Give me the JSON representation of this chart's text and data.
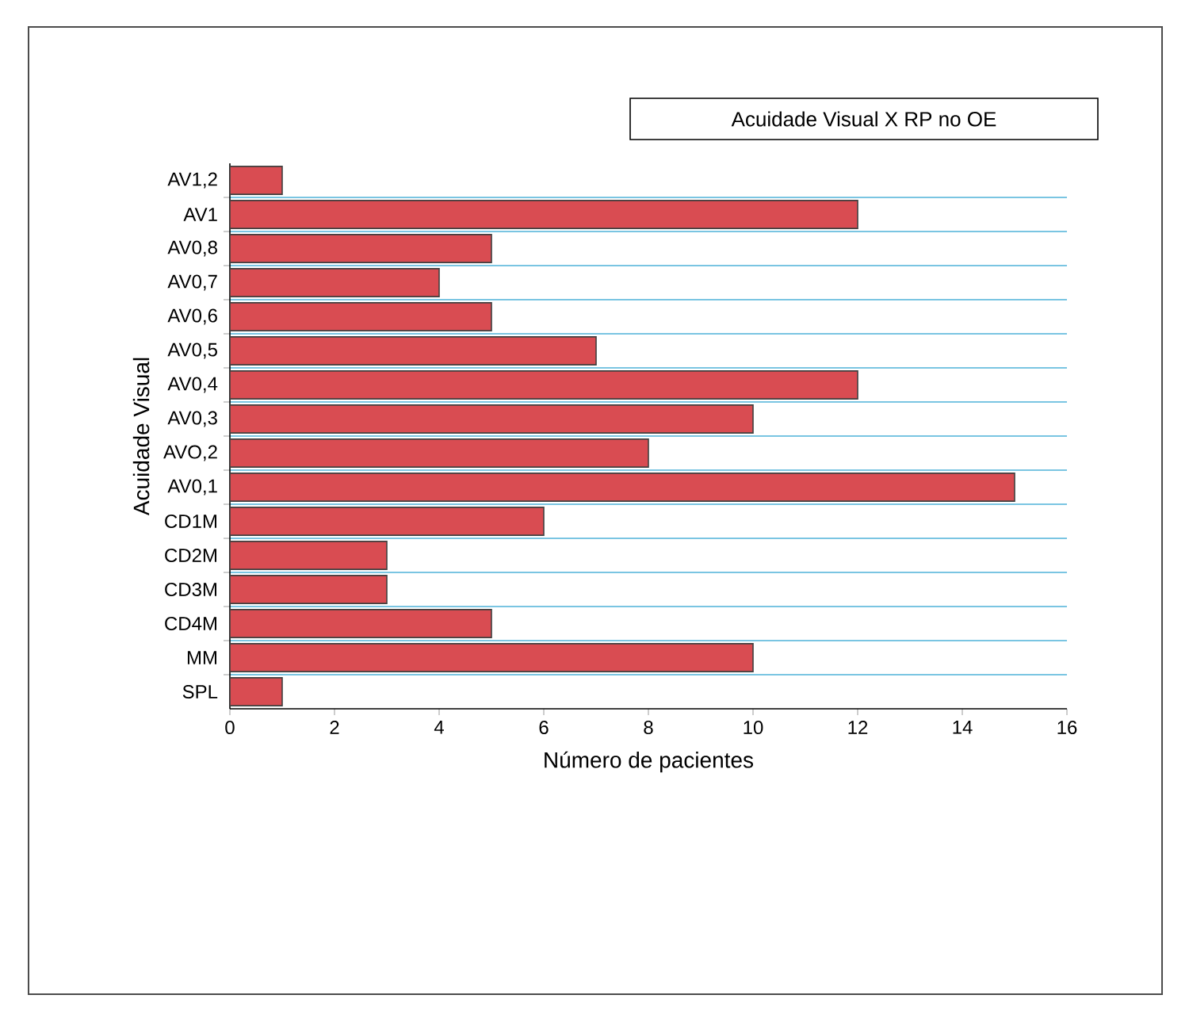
{
  "chart_data": {
    "type": "bar",
    "orientation": "horizontal",
    "title": "Acuidade Visual X RP no OE",
    "xlabel": "Número de pacientes",
    "ylabel": "Acuidade Visual",
    "categories": [
      "AV1,2",
      "AV1",
      "AV0,8",
      "AV0,7",
      "AV0,6",
      "AV0,5",
      "AV0,4",
      "AV0,3",
      "AVO,2",
      "AV0,1",
      "CD1M",
      "CD2M",
      "CD3M",
      "CD4M",
      "MM",
      "SPL"
    ],
    "values": [
      1,
      12,
      5,
      4,
      5,
      7,
      12,
      10,
      8,
      15,
      6,
      3,
      3,
      5,
      10,
      1
    ],
    "color": "#d94c52",
    "xlim": [
      0,
      16
    ],
    "xticks": [
      0,
      2,
      4,
      6,
      8,
      10,
      12,
      14,
      16
    ],
    "grid": "y"
  }
}
